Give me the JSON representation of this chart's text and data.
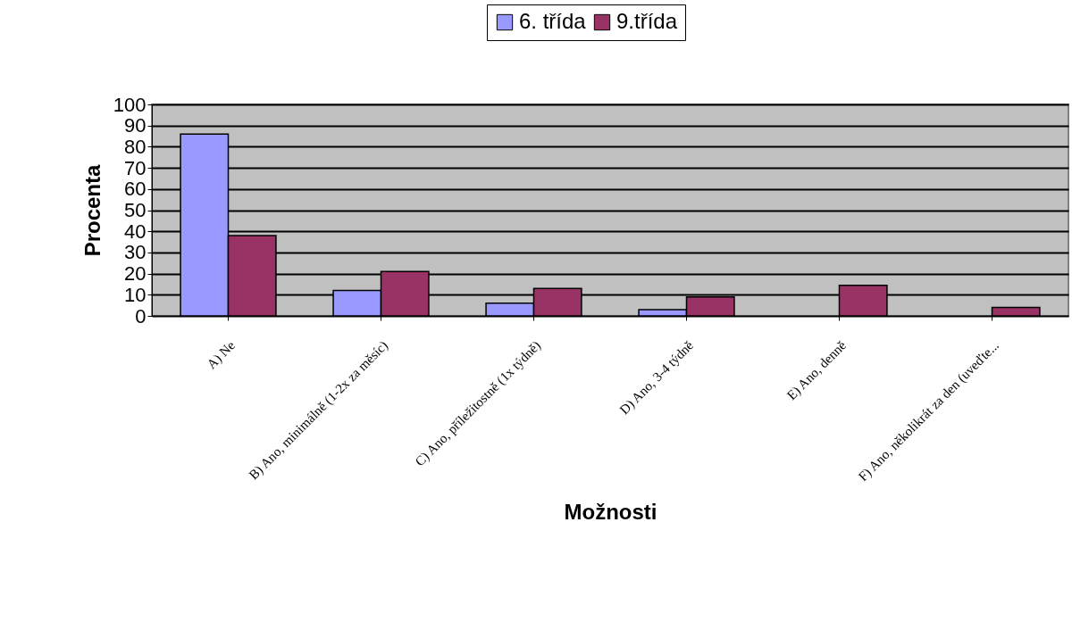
{
  "chart_data": {
    "type": "bar",
    "xlabel": "Možnosti",
    "ylabel": "Procenta",
    "categories": [
      "A) Ne",
      "B) Ano, minimálně (1-2x za měsíc)",
      "C) Ano, příležitostně (1x týdně)",
      "D) Ano, 3-4 týdně",
      "E) Ano, denně",
      "F) Ano, několikrát za den (uveďte..."
    ],
    "series": [
      {
        "name": "6. třída",
        "color": "#9999ff",
        "values": [
          86,
          12,
          6,
          3,
          null,
          null
        ]
      },
      {
        "name": "9.třída",
        "color": "#993366",
        "values": [
          38,
          21,
          13,
          9,
          14.5,
          4
        ]
      }
    ],
    "ylim": [
      0,
      100
    ],
    "yticks": [
      0,
      10,
      20,
      30,
      40,
      50,
      60,
      70,
      80,
      90,
      100
    ],
    "grid": "y",
    "legend": "top"
  }
}
